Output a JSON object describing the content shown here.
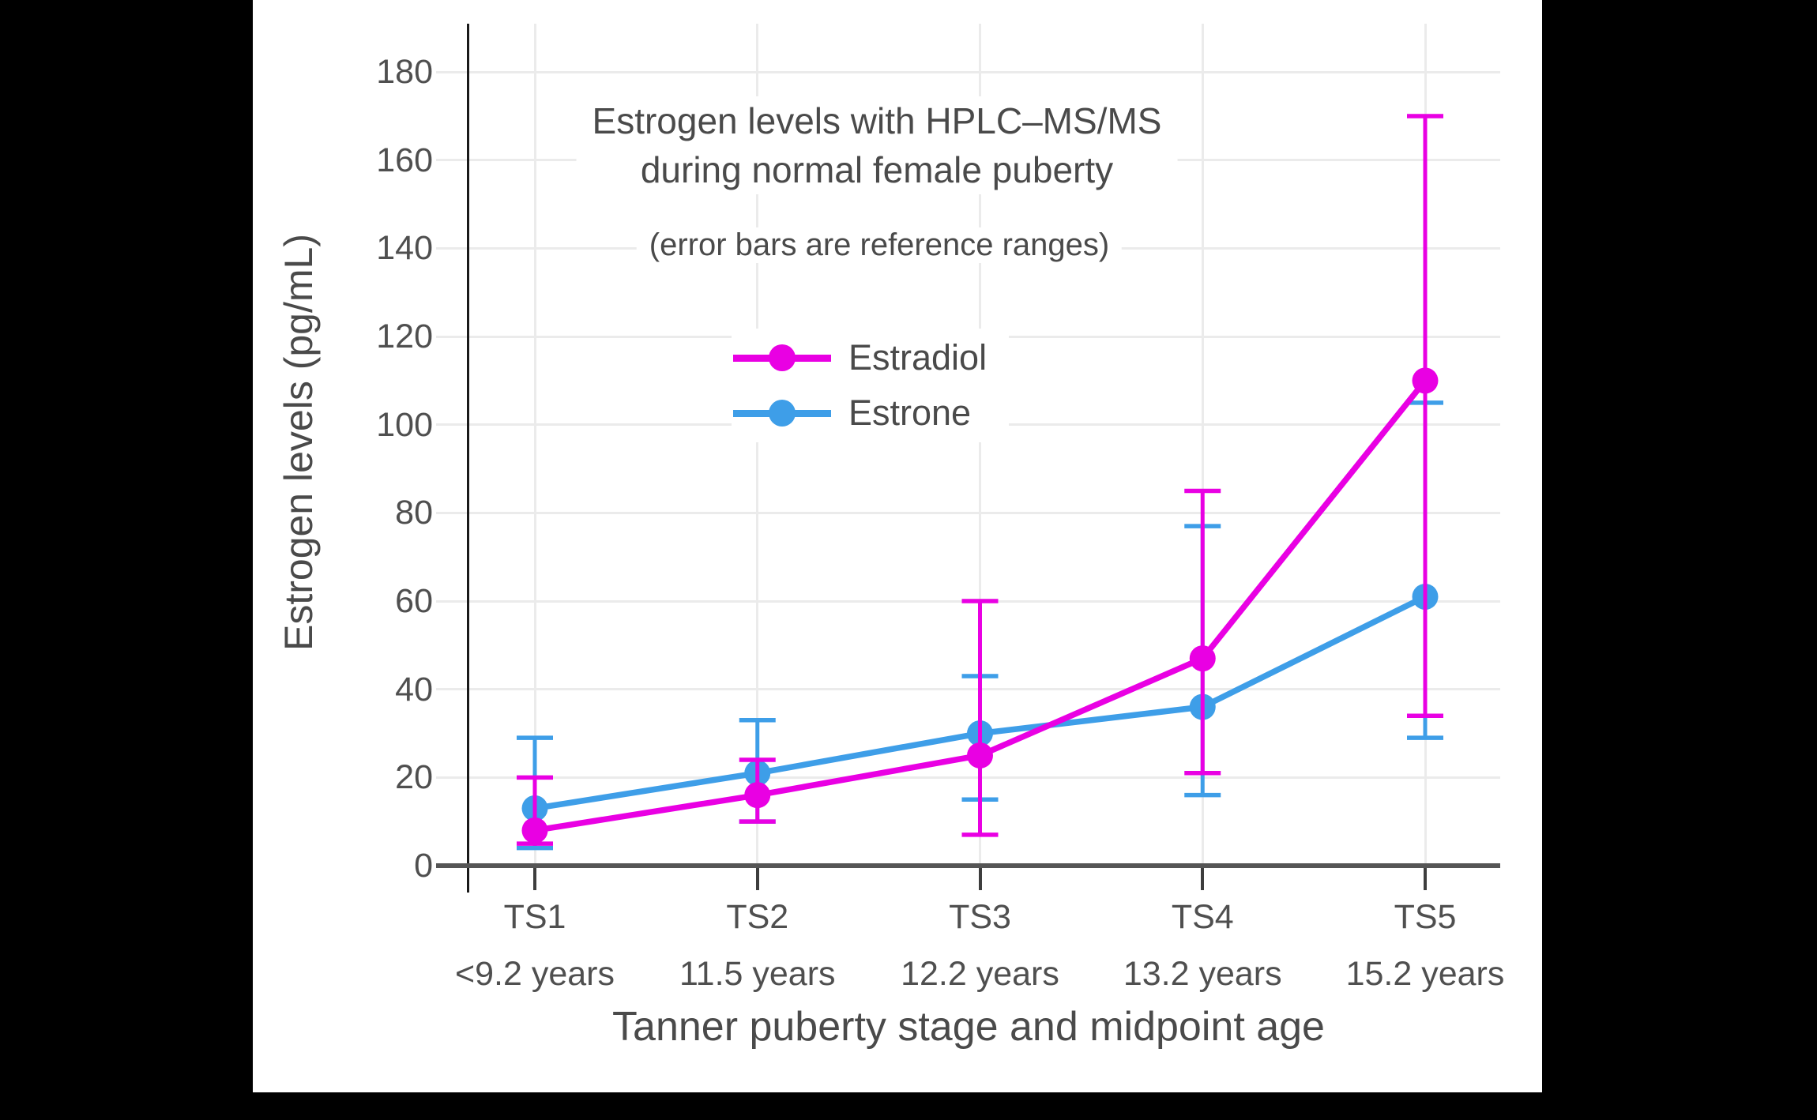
{
  "window": {
    "background_color": "#000000",
    "panel_background_color": "#ffffff"
  },
  "chart_data": {
    "type": "line",
    "title_lines": [
      "Estrogen levels with HPLC–MS/MS",
      "during normal female puberty"
    ],
    "subtitle": "(error bars are reference ranges)",
    "xlabel": "Tanner puberty stage and midpoint age",
    "ylabel": "Estrogen levels (pg/mL)",
    "categories": [
      "TS1",
      "TS2",
      "TS3",
      "TS4",
      "TS5"
    ],
    "category_sublabels": [
      "<9.2 years",
      "11.5 years",
      "12.2 years",
      "13.2 years",
      "15.2 years"
    ],
    "yticks": [
      0,
      20,
      40,
      60,
      80,
      100,
      120,
      140,
      160,
      180
    ],
    "ylim": [
      0,
      191
    ],
    "grid": true,
    "error_bar_meaning": "reference ranges",
    "legend_position": "inside upper-center",
    "legend_items": [
      "Estradiol",
      "Estrone"
    ],
    "series": [
      {
        "name": "Estrone",
        "color": "#3E9EE8",
        "values": [
          13,
          21,
          30,
          36,
          61
        ],
        "err_low": [
          4,
          10,
          15,
          16,
          29
        ],
        "err_high": [
          29,
          33,
          43,
          77,
          105
        ]
      },
      {
        "name": "Estradiol",
        "color": "#E900E3",
        "values": [
          8,
          16,
          25,
          47,
          110
        ],
        "err_low": [
          5,
          10,
          7,
          21,
          34
        ],
        "err_high": [
          20,
          24,
          60,
          85,
          170
        ]
      }
    ],
    "text_color": "#4a4a4a",
    "grid_color": "#ebebeb",
    "axis_color": "#555555"
  }
}
